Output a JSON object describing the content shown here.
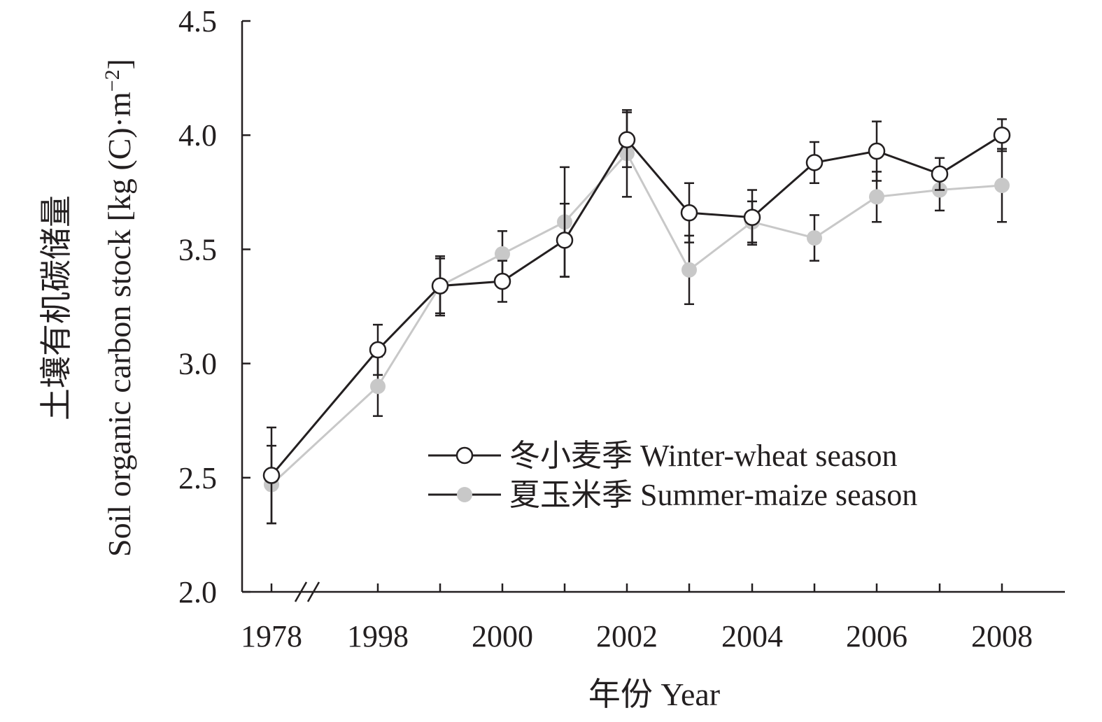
{
  "chart_data": {
    "type": "line",
    "x": [
      "1978",
      "1998",
      "1999",
      "2000",
      "2001",
      "2002",
      "2003",
      "2004",
      "2005",
      "2006",
      "2007",
      "2008"
    ],
    "xtick_labels": [
      "1978",
      "1998",
      "2000",
      "2002",
      "2004",
      "2006",
      "2008"
    ],
    "xlabel": "年份 Year",
    "ylabel_cn": "土壤有机碳储量",
    "ylabel_en": "Soil organic carbon stock [kg (C)·m",
    "ylabel_sup": "−2",
    "ylabel_close": "]",
    "ylim": [
      2.0,
      4.5
    ],
    "yticks": [
      "2.0",
      "2.5",
      "3.0",
      "3.5",
      "4.0",
      "4.5"
    ],
    "axis_break": true,
    "grid": false,
    "legend_position": "lower-right",
    "series": [
      {
        "name": "冬小麦季 Winter-wheat season",
        "marker": "open-circle",
        "line_color": "#231f20",
        "values": [
          2.51,
          3.06,
          3.34,
          3.36,
          3.54,
          3.98,
          3.66,
          3.64,
          3.88,
          3.93,
          3.83,
          4.0
        ],
        "error": [
          0.21,
          0.11,
          0.12,
          0.09,
          0.16,
          0.12,
          0.13,
          0.12,
          0.09,
          0.13,
          0.07,
          0.07
        ]
      },
      {
        "name": "夏玉米季 Summer-maize season",
        "marker": "filled-circle",
        "marker_color": "#c8c8c8",
        "line_color": "#c8c8c8",
        "values": [
          2.47,
          2.9,
          3.34,
          3.48,
          3.62,
          3.92,
          3.41,
          3.62,
          3.55,
          3.73,
          3.76,
          3.78
        ],
        "error": [
          0.17,
          0.13,
          0.13,
          0.1,
          0.24,
          0.19,
          0.15,
          0.09,
          0.1,
          0.11,
          0.09,
          0.16
        ]
      }
    ]
  }
}
